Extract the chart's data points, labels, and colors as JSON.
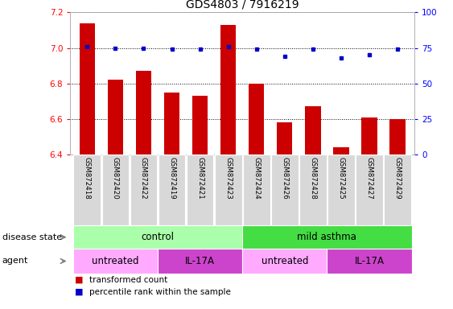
{
  "title": "GDS4803 / 7916219",
  "samples": [
    "GSM872418",
    "GSM872420",
    "GSM872422",
    "GSM872419",
    "GSM872421",
    "GSM872423",
    "GSM872424",
    "GSM872426",
    "GSM872428",
    "GSM872425",
    "GSM872427",
    "GSM872429"
  ],
  "transformed_count": [
    7.14,
    6.82,
    6.87,
    6.75,
    6.73,
    7.13,
    6.8,
    6.58,
    6.67,
    6.44,
    6.61,
    6.6
  ],
  "percentile_rank": [
    76,
    75,
    75,
    74,
    74,
    76,
    74,
    69,
    74,
    68,
    70,
    74
  ],
  "ylim_left": [
    6.4,
    7.2
  ],
  "ylim_right": [
    0,
    100
  ],
  "yticks_left": [
    6.4,
    6.6,
    6.8,
    7.0,
    7.2
  ],
  "yticks_right": [
    0,
    25,
    50,
    75,
    100
  ],
  "bar_color": "#cc0000",
  "dot_color": "#0000cc",
  "grid_color": "#000000",
  "disease_state_groups": [
    {
      "label": "control",
      "start": 0,
      "end": 6,
      "color": "#aaffaa"
    },
    {
      "label": "mild asthma",
      "start": 6,
      "end": 12,
      "color": "#44dd44"
    }
  ],
  "agent_groups": [
    {
      "label": "untreated",
      "start": 0,
      "end": 3,
      "color": "#ffaaff"
    },
    {
      "label": "IL-17A",
      "start": 3,
      "end": 6,
      "color": "#cc44cc"
    },
    {
      "label": "untreated",
      "start": 6,
      "end": 9,
      "color": "#ffaaff"
    },
    {
      "label": "IL-17A",
      "start": 9,
      "end": 12,
      "color": "#cc44cc"
    }
  ],
  "legend_items": [
    {
      "label": "transformed count",
      "color": "#cc0000"
    },
    {
      "label": "percentile rank within the sample",
      "color": "#0000cc"
    }
  ],
  "title_fontsize": 10,
  "tick_fontsize": 7.5,
  "label_fontsize": 8.5,
  "row_label_fontsize": 8,
  "legend_fontsize": 7.5,
  "bar_width": 0.55
}
